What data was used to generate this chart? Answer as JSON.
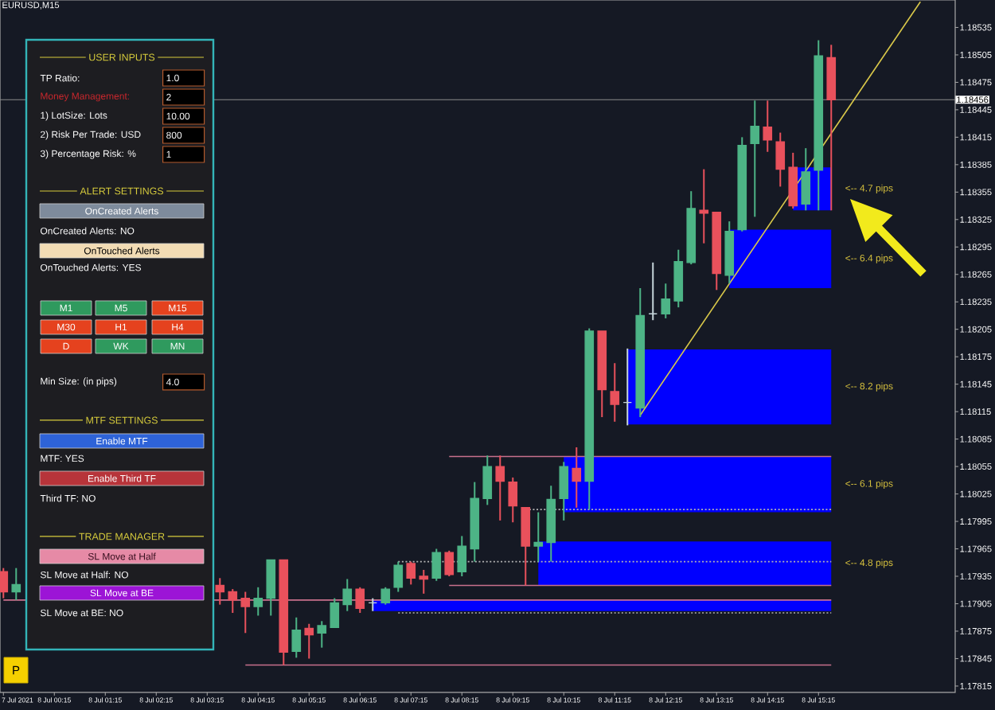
{
  "chart_data": [
    {
      "type": "candlestick",
      "title": "EURUSD,M15",
      "x": [
        "2021-07-07T23:15",
        "2021-07-07T23:30",
        "2021-07-08T03:30",
        "2021-07-08T03:45",
        "2021-07-08T04:00",
        "2021-07-08T04:15",
        "2021-07-08T04:30",
        "2021-07-08T04:45",
        "2021-07-08T05:00",
        "2021-07-08T05:15",
        "2021-07-08T05:30",
        "2021-07-08T05:45",
        "2021-07-08T06:00",
        "2021-07-08T06:15",
        "2021-07-08T06:30",
        "2021-07-08T06:45",
        "2021-07-08T07:00",
        "2021-07-08T07:15",
        "2021-07-08T07:30",
        "2021-07-08T07:45",
        "2021-07-08T08:00",
        "2021-07-08T08:15",
        "2021-07-08T08:30",
        "2021-07-08T08:45",
        "2021-07-08T09:00",
        "2021-07-08T09:15",
        "2021-07-08T09:30",
        "2021-07-08T09:45",
        "2021-07-08T10:00",
        "2021-07-08T10:15",
        "2021-07-08T10:30",
        "2021-07-08T10:45",
        "2021-07-08T11:00",
        "2021-07-08T11:15",
        "2021-07-08T11:30",
        "2021-07-08T11:45",
        "2021-07-08T12:00",
        "2021-07-08T12:15",
        "2021-07-08T12:30",
        "2021-07-08T12:45",
        "2021-07-08T13:00",
        "2021-07-08T13:15",
        "2021-07-08T13:30",
        "2021-07-08T13:45",
        "2021-07-08T14:00",
        "2021-07-08T14:15",
        "2021-07-08T14:30",
        "2021-07-08T14:45",
        "2021-07-08T15:00",
        "2021-07-08T15:15",
        "2021-07-08T15:30"
      ],
      "ohlc": [
        [
          1.1794,
          1.17944,
          1.17911,
          1.17918
        ],
        [
          1.17918,
          1.17944,
          1.17909,
          1.17926
        ],
        [
          1.17925,
          1.17933,
          1.17904,
          1.17918
        ],
        [
          1.17918,
          1.17921,
          1.17895,
          1.17909
        ],
        [
          1.17911,
          1.17918,
          1.17873,
          1.17902
        ],
        [
          1.17902,
          1.17923,
          1.17892,
          1.17911
        ],
        [
          1.17911,
          1.17953,
          1.17892,
          1.17953
        ],
        [
          1.17953,
          1.17953,
          1.17838,
          1.17852
        ],
        [
          1.17853,
          1.1789,
          1.17846,
          1.17876
        ],
        [
          1.17878,
          1.17883,
          1.17845,
          1.17871
        ],
        [
          1.17873,
          1.17886,
          1.17857,
          1.17881
        ],
        [
          1.17879,
          1.17911,
          1.17879,
          1.17906
        ],
        [
          1.17904,
          1.17932,
          1.17897,
          1.17921
        ],
        [
          1.17921,
          1.17923,
          1.17895,
          1.179
        ],
        [
          1.17906,
          1.17911,
          1.17897,
          1.17906
        ],
        [
          1.17906,
          1.17923,
          1.17904,
          1.17921
        ],
        [
          1.17923,
          1.17951,
          1.17918,
          1.17947
        ],
        [
          1.17949,
          1.17951,
          1.17926,
          1.17933
        ],
        [
          1.17935,
          1.17942,
          1.17916,
          1.17932
        ],
        [
          1.17933,
          1.17965,
          1.1793,
          1.17961
        ],
        [
          1.17961,
          1.17963,
          1.17935,
          1.17937
        ],
        [
          1.1794,
          1.17979,
          1.17935,
          1.17968
        ],
        [
          1.17965,
          1.18038,
          1.17951,
          1.1802
        ],
        [
          1.1802,
          1.18067,
          1.18013,
          1.18055
        ],
        [
          1.18055,
          1.18067,
          1.17996,
          1.18039
        ],
        [
          1.18038,
          1.18043,
          1.17994,
          1.18012
        ],
        [
          1.1801,
          1.1801,
          1.17925,
          1.17968
        ],
        [
          1.17968,
          1.18005,
          1.17951,
          1.17972
        ],
        [
          1.17972,
          1.18034,
          1.17951,
          1.18019
        ],
        [
          1.1802,
          1.1806,
          1.17996,
          1.18055
        ],
        [
          1.18053,
          1.18076,
          1.1801,
          1.18039
        ],
        [
          1.18039,
          1.18206,
          1.18008,
          1.18203
        ],
        [
          1.18203,
          1.18203,
          1.18109,
          1.18139
        ],
        [
          1.18137,
          1.18168,
          1.18104,
          1.18123
        ],
        [
          1.18125,
          1.18184,
          1.181,
          1.18125
        ],
        [
          1.18119,
          1.1825,
          1.18109,
          1.1822
        ],
        [
          1.18222,
          1.18278,
          1.18215,
          1.18222
        ],
        [
          1.18222,
          1.18255,
          1.18217,
          1.18238
        ],
        [
          1.18236,
          1.18292,
          1.18229,
          1.18279
        ],
        [
          1.18278,
          1.18356,
          1.18276,
          1.18337
        ],
        [
          1.18335,
          1.1838,
          1.18299,
          1.18332
        ],
        [
          1.18333,
          1.18333,
          1.18248,
          1.18266
        ],
        [
          1.18264,
          1.18323,
          1.18255,
          1.18312
        ],
        [
          1.18314,
          1.18415,
          1.18312,
          1.18406
        ],
        [
          1.18408,
          1.18455,
          1.18328,
          1.18427
        ],
        [
          1.18426,
          1.18455,
          1.18399,
          1.18412
        ],
        [
          1.1841,
          1.1842,
          1.18361,
          1.1838
        ],
        [
          1.18382,
          1.18398,
          1.18337,
          1.1834
        ],
        [
          1.18342,
          1.18403,
          1.18335,
          1.18377
        ],
        [
          1.18379,
          1.18521,
          1.18335,
          1.18504
        ],
        [
          1.18502,
          1.18516,
          1.18335,
          1.18456
        ]
      ],
      "colors": [
        "#e9515c",
        "#4db486",
        "#e9515c",
        "#e9515c",
        "#e9515c",
        "#4db486",
        "#4db486",
        "#e9515c",
        "#4db486",
        "#e9515c",
        "#4db486",
        "#4db486",
        "#4db486",
        "#e9515c",
        "#c7d6dc",
        "#4db486",
        "#4db486",
        "#e9515c",
        "#e9515c",
        "#4db486",
        "#e9515c",
        "#4db486",
        "#4db486",
        "#4db486",
        "#e9515c",
        "#e9515c",
        "#e9515c",
        "#4db486",
        "#4db486",
        "#4db486",
        "#e9515c",
        "#4db486",
        "#e9515c",
        "#e9515c",
        "#c7d6dc",
        "#4db486",
        "#c7d6dc",
        "#4db486",
        "#4db486",
        "#4db486",
        "#e9515c",
        "#e9515c",
        "#4db486",
        "#4db486",
        "#4db486",
        "#e9515c",
        "#e9515c",
        "#e9515c",
        "#4db486",
        "#4db486",
        "#e9515c"
      ],
      "series": [
        {
          "type": "area",
          "x": [
            "2021-07-08T14:45",
            "2021-07-08T15:30"
          ],
          "values": [
            null,
            null
          ],
          "lower": [
            1.18335,
            1.18335
          ],
          "upper": [
            1.18382,
            1.18382
          ],
          "color": "#0000ff"
        },
        {
          "type": "area",
          "x": [
            "2021-07-08T13:30",
            "2021-07-08T15:30"
          ],
          "values": [
            null,
            null
          ],
          "lower": [
            1.1825,
            1.1825
          ],
          "upper": [
            1.18314,
            1.18314
          ],
          "color": "#0000ff"
        },
        {
          "type": "area",
          "x": [
            "2021-07-08T11:30",
            "2021-07-08T15:30"
          ],
          "values": [
            null,
            null
          ],
          "lower": [
            1.18101,
            1.18101
          ],
          "upper": [
            1.18183,
            1.18183
          ],
          "color": "#0000ff"
        },
        {
          "type": "area",
          "x": [
            "2021-07-08T10:15",
            "2021-07-08T15:30"
          ],
          "values": [
            null,
            null
          ],
          "lower": [
            1.18005,
            1.18005
          ],
          "upper": [
            1.18066,
            1.18066
          ],
          "color": "#0000ff"
        },
        {
          "type": "area",
          "x": [
            "2021-07-08T09:45",
            "2021-07-08T15:30"
          ],
          "values": [
            null,
            null
          ],
          "lower": [
            1.17925,
            1.17925
          ],
          "upper": [
            1.17973,
            1.17973
          ],
          "color": "#0000ff"
        },
        {
          "type": "area",
          "x": [
            "2021-07-08T06:30",
            "2021-07-08T15:30"
          ],
          "values": [
            null,
            null
          ],
          "lower": [
            1.17897,
            1.17897
          ],
          "upper": [
            1.17909,
            1.17909
          ],
          "color": "#0000ff"
        },
        {
          "type": "line",
          "x": [
            "2021-07-08T08:00",
            "2021-07-08T15:30"
          ],
          "values": [
            1.18066,
            1.18066
          ],
          "color": "#c8708c"
        },
        {
          "type": "line",
          "x": [
            "2021-07-08T08:00",
            "2021-07-08T15:30"
          ],
          "values": [
            1.17925,
            1.17925
          ],
          "color": "#c8708c"
        },
        {
          "type": "line",
          "x": [
            "2021-07-07T23:15",
            "2021-07-08T15:30"
          ],
          "values": [
            1.17909,
            1.17909
          ],
          "color": "#c8708c"
        },
        {
          "type": "line",
          "x": [
            "2021-07-08T04:00",
            "2021-07-08T15:30"
          ],
          "values": [
            1.17838,
            1.17838
          ],
          "color": "#c8708c"
        },
        {
          "type": "line",
          "x": [
            "2021-07-08T09:30",
            "2021-07-08T15:30"
          ],
          "values": [
            1.18008,
            1.18008
          ],
          "color": "#b4b4b4",
          "line_style": "dotted"
        },
        {
          "type": "line",
          "x": [
            "2021-07-08T07:00",
            "2021-07-08T15:30"
          ],
          "values": [
            1.17951,
            1.17951
          ],
          "color": "#b4b4b4",
          "line_style": "dotted"
        },
        {
          "type": "line",
          "x": [
            "2021-07-08T07:00",
            "2021-07-08T15:30"
          ],
          "values": [
            1.17895,
            1.17895
          ],
          "color": "#b4b4b4",
          "line_style": "dotted"
        },
        {
          "type": "line",
          "x": [
            "2021-07-08T11:45",
            "2021-07-08T17:15"
          ],
          "values": [
            1.18111,
            1.18563
          ],
          "color": "#d9c84a"
        }
      ],
      "ref_lines": [
        {
          "axis": "y",
          "value": 1.18456,
          "label": "1.18456",
          "color": "#8c8c8c"
        }
      ],
      "annotations": [
        "<-- 4.7 pips",
        "<-- 6.4 pips",
        "<-- 8.2 pips",
        "<-- 6.1 pips",
        "<-- 4.8 pips"
      ],
      "xlim": [
        "2021-07-07T23:11",
        "2021-07-08T17:56"
      ],
      "ylim": [
        1.17808,
        1.18565
      ],
      "xticks": [
        {
          "value": "2021-07-07T23:15",
          "label": "7 Jul 2021"
        },
        {
          "value": "2021-07-08T00:15",
          "label": "8 Jul 00:15"
        },
        {
          "value": "2021-07-08T01:15",
          "label": "8 Jul 01:15"
        },
        {
          "value": "2021-07-08T02:15",
          "label": "8 Jul 02:15"
        },
        {
          "value": "2021-07-08T03:15",
          "label": "8 Jul 03:15"
        },
        {
          "value": "2021-07-08T04:15",
          "label": "8 Jul 04:15"
        },
        {
          "value": "2021-07-08T05:15",
          "label": "8 Jul 05:15"
        },
        {
          "value": "2021-07-08T06:15",
          "label": "8 Jul 06:15"
        },
        {
          "value": "2021-07-08T07:15",
          "label": "8 Jul 07:15"
        },
        {
          "value": "2021-07-08T08:15",
          "label": "8 Jul 08:15"
        },
        {
          "value": "2021-07-08T09:15",
          "label": "8 Jul 09:15"
        },
        {
          "value": "2021-07-08T10:15",
          "label": "8 Jul 10:15"
        },
        {
          "value": "2021-07-08T11:15",
          "label": "8 Jul 11:15"
        },
        {
          "value": "2021-07-08T12:15",
          "label": "8 Jul 12:15"
        },
        {
          "value": "2021-07-08T13:15",
          "label": "8 Jul 13:15"
        },
        {
          "value": "2021-07-08T14:15",
          "label": "8 Jul 14:15"
        },
        {
          "value": "2021-07-08T15:15",
          "label": "8 Jul 15:15"
        }
      ],
      "yticks": [
        1.17815,
        1.17845,
        1.17875,
        1.17905,
        1.17935,
        1.17965,
        1.17995,
        1.18025,
        1.18055,
        1.18085,
        1.18115,
        1.18145,
        1.18175,
        1.18205,
        1.18235,
        1.18265,
        1.18295,
        1.18325,
        1.18355,
        1.18385,
        1.18415,
        1.18445,
        1.18475,
        1.18505,
        1.18535
      ]
    },
    {
      "type": "other",
      "annotations": [
        "USER INPUTS",
        "TP Ratio:",
        "1.0",
        "Money Management:",
        "2",
        "1) LotSize: Lots",
        "10.00",
        "2) Risk Per Trade: USD",
        "800",
        "3) Percentage Risk: %",
        "1",
        "ALERT SETTINGS",
        "OnCreated Alerts",
        "OnCreated Alerts: NO",
        "OnTouched Alerts",
        "OnTouched Alerts: YES",
        "M1",
        "M5",
        "M15",
        "M30",
        "H1",
        "H4",
        "D",
        "WK",
        "MN",
        "Min Size: (in pips)",
        "4.0",
        "MTF SETTINGS",
        "Enable MTF",
        "MTF: YES",
        "Enable Third TF",
        "Third TF: NO",
        "TRADE MANAGER",
        "SL Move at Half",
        "SL Move at Half: NO",
        "SL Move at BE",
        "SL Move at BE: NO",
        "P"
      ]
    }
  ]
}
